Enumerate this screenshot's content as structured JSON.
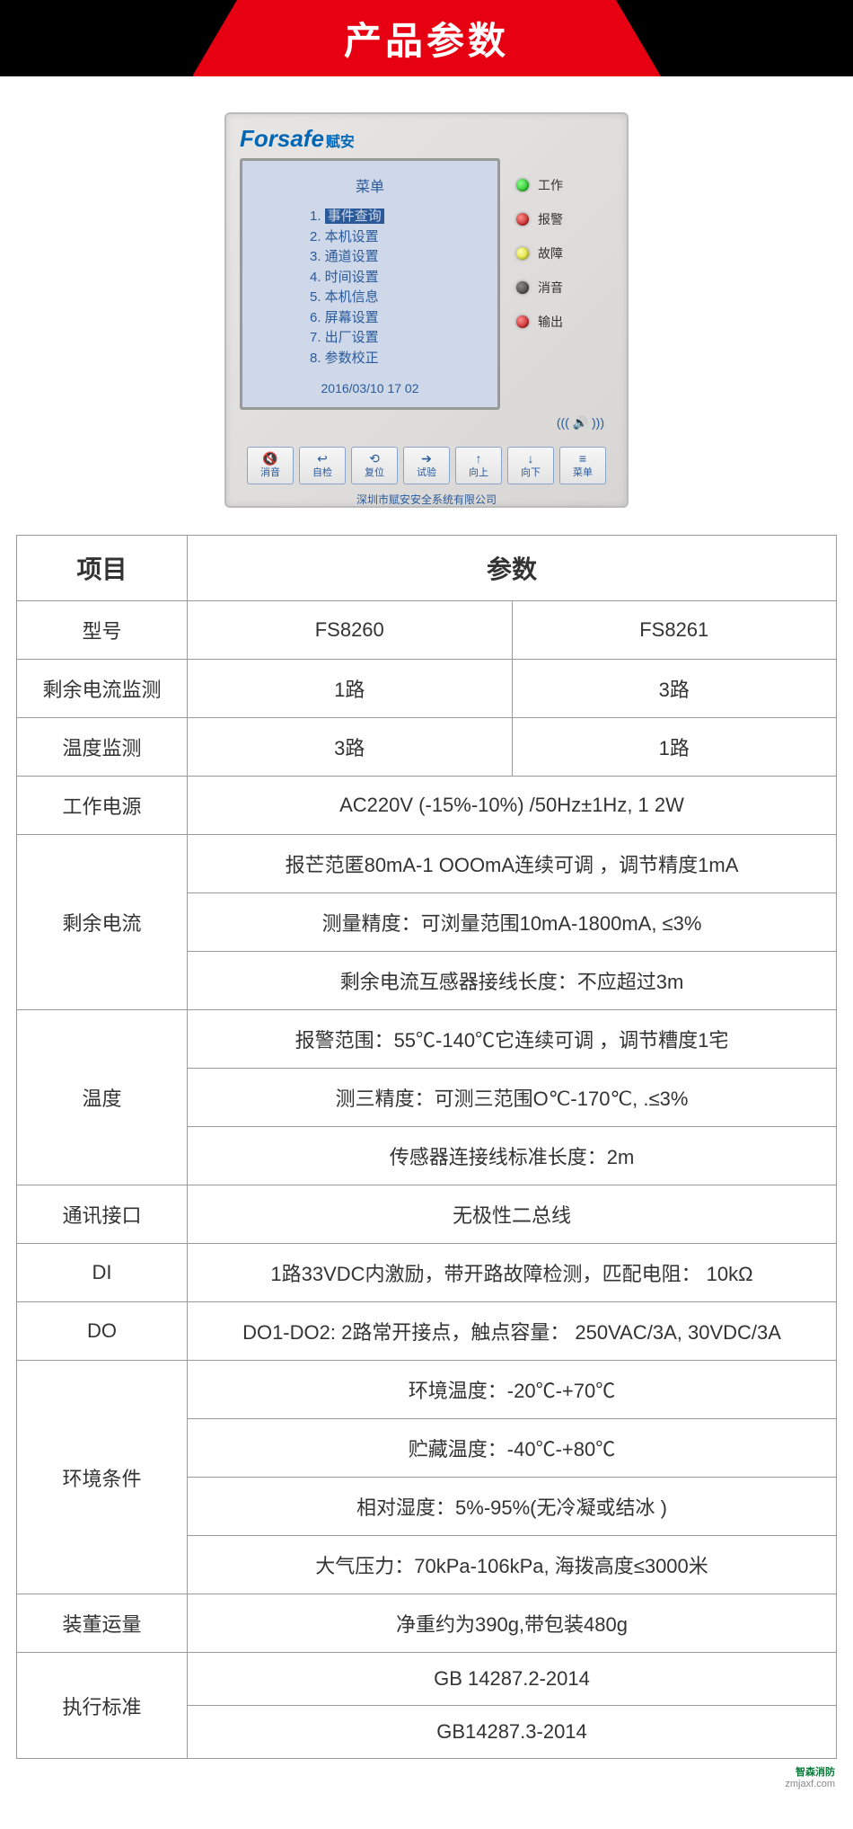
{
  "header": {
    "title": "产品参数"
  },
  "device": {
    "brand_en": "Forsafe",
    "brand_cn": "赋安",
    "screen": {
      "title": "菜单",
      "items": [
        "1.  事件查询",
        "2.  本机设置",
        "3.  通道设置",
        "4.  时间设置",
        "5.  本机信息",
        "6.  屏幕设置",
        "7.  出厂设置",
        "8.  参数校正"
      ],
      "highlight_index": 0,
      "date": "2016/03/10 17 02"
    },
    "leds": [
      {
        "color": "green",
        "label": "工作"
      },
      {
        "color": "red",
        "label": "报警"
      },
      {
        "color": "yellow",
        "label": "故障"
      },
      {
        "color": "dark",
        "label": "消音"
      },
      {
        "color": "red",
        "label": "输出"
      }
    ],
    "speaker_glyph": "((( 🔊 )))",
    "buttons": [
      {
        "icon": "🔇",
        "label": "消音"
      },
      {
        "icon": "↩",
        "label": "自检"
      },
      {
        "icon": "⟲",
        "label": "复位"
      },
      {
        "icon": "➔",
        "label": "试验"
      },
      {
        "icon": "↑",
        "label": "向上"
      },
      {
        "icon": "↓",
        "label": "向下"
      },
      {
        "icon": "≡",
        "label": "菜单"
      }
    ],
    "footer": "深圳市赋安安全系统有限公司"
  },
  "table": {
    "head_item": "项目",
    "head_param": "参数",
    "rows": [
      {
        "label": "型号",
        "c1": "FS8260",
        "c2": "FS8261"
      },
      {
        "label": "剩余电流监测",
        "c1": "1路",
        "c2": "3路"
      },
      {
        "label": "温度监测",
        "c1": "3路",
        "c2": "1路"
      },
      {
        "label": "工作电源",
        "full": "AC220V (-15%-10%) /50Hz±1Hz, 1 2W"
      },
      {
        "label": "剩余电流",
        "multi": [
          "报芒范匿80mA-1 OOOmA连续可调 ，调节精度1mA",
          "测量精度：可浏量范围10mA-1800mA, ≤3%",
          "剩余电流互感器接线长度：不应超过3m"
        ]
      },
      {
        "label": "温度",
        "multi": [
          "报警范围：55℃-140℃它连续可调 ，调节糟度1宅",
          "测三精度：可测三范围O℃-170℃, .≤3%",
          "传感器连接线标准长度：2m"
        ]
      },
      {
        "label": "通讯接口",
        "full": "无极性二总线"
      },
      {
        "label": "DI",
        "full": "1路33VDC内激励，带开路故障检测，匹配电阻： 10kΩ"
      },
      {
        "label": "DO",
        "full": "DO1-DO2: 2路常开接点，触点容量： 250VAC/3A, 30VDC/3A"
      },
      {
        "label": "环境条件",
        "multi": [
          "环境温度：-20℃-+70℃",
          "贮藏温度：-40℃-+80℃",
          "相对湿度：5%-95%(无冷凝或结冰 )",
          "大气压力：70kPa-106kPa, 海拨高度≤3000米"
        ]
      },
      {
        "label": "装董运量",
        "full": "净重约为390g,带包装480g"
      },
      {
        "label": "执行标准",
        "multi": [
          "GB 14287.2-2014",
          "GB14287.3-2014"
        ]
      }
    ]
  },
  "watermark": {
    "brand": "智森消防",
    "url": "zmjaxf.com"
  },
  "colors": {
    "banner_bg": "#000000",
    "banner_red": "#e60012",
    "device_blue": "#0066b3",
    "screen_bg": "#cfd8e8",
    "screen_text": "#2a5a9a",
    "border": "#999999"
  }
}
